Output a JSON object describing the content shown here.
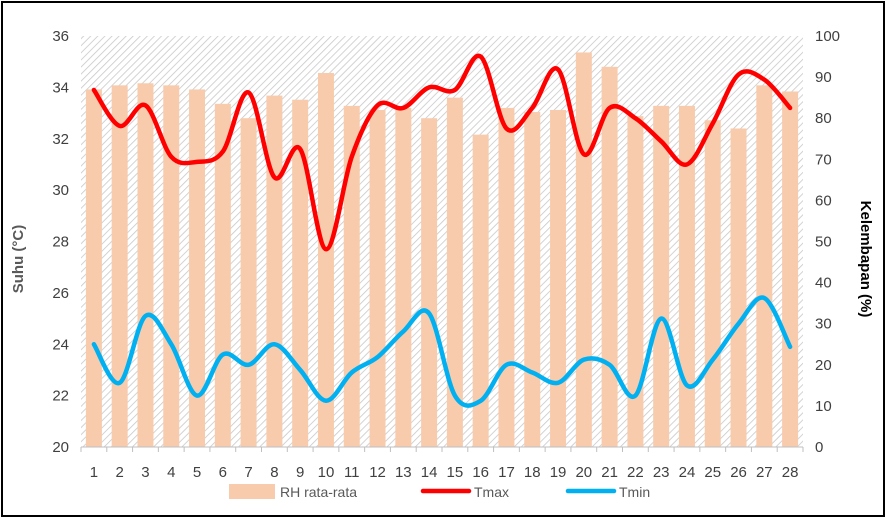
{
  "chart_data": {
    "type": "bar+line",
    "categories": [
      "1",
      "2",
      "3",
      "4",
      "5",
      "6",
      "7",
      "8",
      "9",
      "10",
      "11",
      "12",
      "13",
      "14",
      "15",
      "16",
      "17",
      "18",
      "19",
      "20",
      "21",
      "22",
      "23",
      "24",
      "25",
      "26",
      "27",
      "28"
    ],
    "series": [
      {
        "name": "RH rata-rata",
        "chart": "bar",
        "axis": "right",
        "color": "#f8cbad",
        "values": [
          87,
          88,
          88.5,
          88,
          87,
          83.5,
          80,
          85.5,
          84.5,
          91,
          83,
          82,
          82.5,
          80,
          85,
          76,
          82.5,
          81.5,
          82,
          96,
          92.5,
          80.5,
          83,
          83,
          79.5,
          77.5,
          88,
          86.5
        ]
      },
      {
        "name": "Tmax",
        "chart": "line",
        "axis": "left",
        "color": "#ff0000",
        "values": [
          33.9,
          32.5,
          33.3,
          31.3,
          31.1,
          31.5,
          33.8,
          30.5,
          31.6,
          27.7,
          31.3,
          33.3,
          33.2,
          34.0,
          33.9,
          35.2,
          32.4,
          33.2,
          34.7,
          31.4,
          33.2,
          32.8,
          31.9,
          31.0,
          32.6,
          34.5,
          34.3,
          33.2
        ]
      },
      {
        "name": "Tmin",
        "chart": "line",
        "axis": "left",
        "color": "#00b0f0",
        "values": [
          24.0,
          22.5,
          25.1,
          24.0,
          22.0,
          23.6,
          23.2,
          24.0,
          23.0,
          21.8,
          22.9,
          23.5,
          24.5,
          25.2,
          22.0,
          21.8,
          23.2,
          22.9,
          22.5,
          23.4,
          23.2,
          22.0,
          25.0,
          22.4,
          23.4,
          24.8,
          25.8,
          23.9
        ]
      }
    ],
    "ylabel": "Suhu (°C)",
    "y2label": "Kelembapan (%)",
    "ylim": [
      20,
      36
    ],
    "y2lim": [
      0,
      100
    ],
    "yticks": [
      "20",
      "22",
      "24",
      "26",
      "28",
      "30",
      "32",
      "34",
      "36"
    ],
    "y2ticks": [
      "0",
      "10",
      "20",
      "30",
      "40",
      "50",
      "60",
      "70",
      "80",
      "90",
      "100"
    ],
    "grid": false,
    "legend_position": "bottom"
  }
}
